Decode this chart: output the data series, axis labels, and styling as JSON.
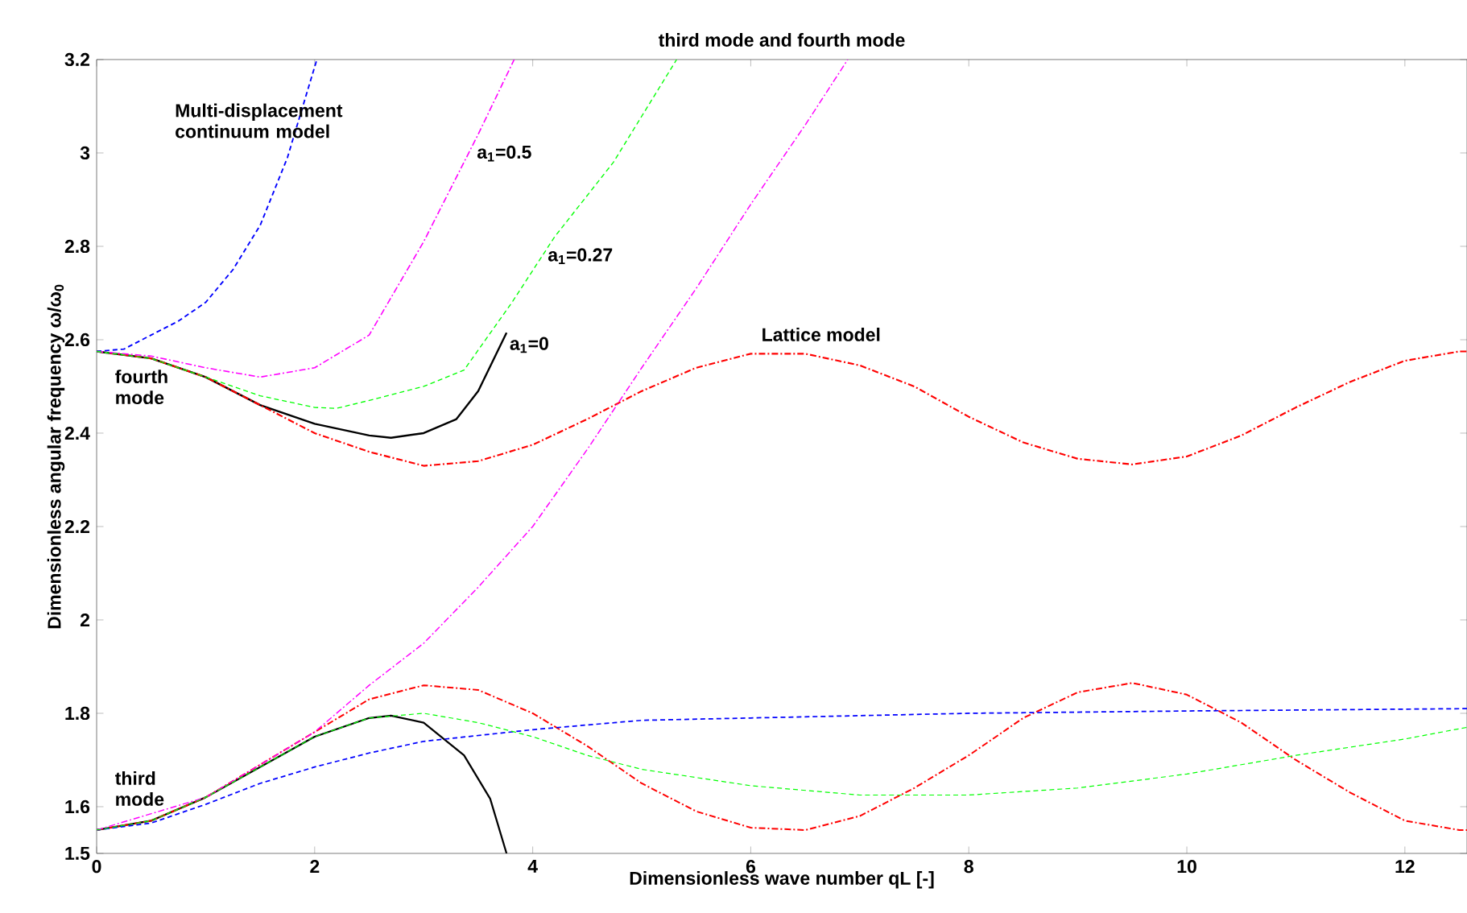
{
  "chart_data": {
    "type": "line",
    "title": "third mode and fourth mode",
    "xlabel": "Dimensionless wave number qL [-]",
    "ylabel": "Dimensionless angular frequency ω/ω$_{0}$",
    "xlim": [
      0,
      12.57
    ],
    "ylim": [
      1.5,
      3.2
    ],
    "xticks": [
      0,
      2,
      4,
      6,
      8,
      10,
      12
    ],
    "yticks": [
      1.5,
      1.6,
      1.8,
      2,
      2.2,
      2.4,
      2.6,
      2.8,
      3,
      3.2
    ],
    "grid": false,
    "series": [
      {
        "color": "#ff0000",
        "line_style": "dashdot",
        "x": [
          0,
          0.5,
          1,
          1.5,
          2,
          2.5,
          3,
          3.5,
          4,
          4.5,
          5,
          5.5,
          6,
          6.5,
          7,
          7.5,
          8,
          8.5,
          9,
          9.5,
          10,
          10.5,
          11,
          11.5,
          12,
          12.5,
          12.57
        ],
        "values": [
          2.575,
          2.56,
          2.52,
          2.46,
          2.4,
          2.36,
          2.33,
          2.34,
          2.375,
          2.43,
          2.49,
          2.54,
          2.57,
          2.57,
          2.545,
          2.5,
          2.435,
          2.38,
          2.345,
          2.333,
          2.35,
          2.395,
          2.455,
          2.51,
          2.555,
          2.575,
          2.575
        ]
      },
      {
        "color": "#ff0000",
        "line_style": "dashdot",
        "x": [
          0,
          0.5,
          1,
          1.5,
          2,
          2.5,
          3,
          3.5,
          4,
          4.5,
          5,
          5.5,
          6,
          6.5,
          7,
          7.5,
          8,
          8.5,
          9,
          9.5,
          10,
          10.5,
          11,
          11.5,
          12,
          12.5,
          12.57
        ],
        "values": [
          1.55,
          1.57,
          1.62,
          1.69,
          1.76,
          1.83,
          1.86,
          1.85,
          1.8,
          1.73,
          1.65,
          1.59,
          1.555,
          1.55,
          1.58,
          1.64,
          1.71,
          1.79,
          1.845,
          1.865,
          1.84,
          1.78,
          1.7,
          1.63,
          1.57,
          1.55,
          1.55
        ]
      },
      {
        "color": "#0000ff",
        "line_style": "dashed",
        "x": [
          0,
          0.25,
          0.5,
          0.75,
          1,
          1.25,
          1.5,
          1.75,
          2.02
        ],
        "values": [
          2.575,
          2.58,
          2.61,
          2.64,
          2.68,
          2.75,
          2.845,
          2.99,
          3.2
        ]
      },
      {
        "color": "#0000ff",
        "line_style": "dashed",
        "x": [
          0,
          0.5,
          1,
          1.5,
          2,
          2.5,
          3,
          4,
          5,
          6,
          8,
          10,
          12.57
        ],
        "values": [
          1.55,
          1.565,
          1.605,
          1.65,
          1.685,
          1.715,
          1.74,
          1.765,
          1.785,
          1.79,
          1.8,
          1.805,
          1.81
        ]
      },
      {
        "color": "#ff00ff",
        "line_style": "dashdot",
        "x": [
          0,
          0.5,
          1,
          1.5,
          2,
          2.5,
          3,
          3.5,
          3.83
        ],
        "values": [
          2.575,
          2.565,
          2.54,
          2.52,
          2.54,
          2.61,
          2.81,
          3.04,
          3.2
        ]
      },
      {
        "color": "#ff00ff",
        "line_style": "dashdot",
        "x": [
          0,
          1,
          2,
          2.5,
          3,
          3.5,
          4,
          4.5,
          5,
          5.5,
          6,
          6.5,
          6.89
        ],
        "values": [
          1.55,
          1.62,
          1.76,
          1.86,
          1.95,
          2.07,
          2.2,
          2.365,
          2.54,
          2.71,
          2.89,
          3.06,
          3.2
        ]
      },
      {
        "color": "#00ff00",
        "line_style": "dashed",
        "x": [
          0,
          0.5,
          1,
          1.5,
          2,
          2.2,
          2.5,
          3,
          3.37,
          3.81,
          4.2,
          4.74,
          5.32
        ],
        "values": [
          2.575,
          2.56,
          2.52,
          2.48,
          2.455,
          2.453,
          2.47,
          2.5,
          2.535,
          2.68,
          2.82,
          2.98,
          3.2
        ]
      },
      {
        "color": "#00ff00",
        "line_style": "dashed",
        "x": [
          0,
          0.5,
          1,
          1.5,
          2,
          2.5,
          3,
          3.5,
          4,
          4.5,
          5,
          6,
          7,
          8,
          9,
          10,
          11,
          12,
          12.57
        ],
        "values": [
          1.55,
          1.57,
          1.62,
          1.685,
          1.75,
          1.79,
          1.8,
          1.78,
          1.75,
          1.71,
          1.68,
          1.645,
          1.625,
          1.625,
          1.64,
          1.67,
          1.71,
          1.745,
          1.77
        ]
      },
      {
        "color": "#000000",
        "line_style": "solid",
        "x": [
          0,
          0.5,
          1,
          1.5,
          2,
          2.5,
          2.7,
          3,
          3.3,
          3.5,
          3.76
        ],
        "values": [
          2.575,
          2.56,
          2.52,
          2.46,
          2.42,
          2.395,
          2.39,
          2.4,
          2.43,
          2.49,
          2.615
        ]
      },
      {
        "color": "#000000",
        "line_style": "solid",
        "x": [
          0,
          0.5,
          1,
          1.5,
          2,
          2.5,
          2.7,
          3,
          3.37,
          3.61,
          3.76
        ],
        "values": [
          1.55,
          1.57,
          1.62,
          1.685,
          1.75,
          1.79,
          1.795,
          1.78,
          1.71,
          1.617,
          1.5
        ]
      }
    ],
    "annotations": [
      "Multi-displacement continuum model",
      {
        "text": "a$_{1}$=0.5",
        "x": 3.47,
        "y": 3.02
      },
      {
        "text": "a$_{1}$=0.27",
        "x": 4.12,
        "y": 2.8
      },
      {
        "text": "a$_{1}$=0",
        "x": 3.77,
        "y": 2.61
      },
      "Lattice model",
      "fourth mode",
      "third mode"
    ]
  }
}
